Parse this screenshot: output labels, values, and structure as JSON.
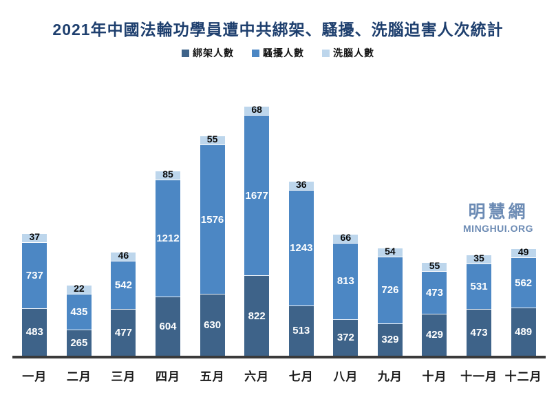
{
  "chart_data": {
    "type": "bar",
    "stacked": true,
    "title": "2021年中國法輪功學員遭中共綁架、騷擾、洗腦迫害人次統計",
    "title_color": "#1E3F6E",
    "categories": [
      "一月",
      "二月",
      "三月",
      "四月",
      "五月",
      "六月",
      "七月",
      "八月",
      "九月",
      "十月",
      "十一月",
      "十二月"
    ],
    "series": [
      {
        "name": "綁架人數",
        "color": "#3E6389",
        "values": [
          483,
          265,
          477,
          604,
          630,
          822,
          513,
          372,
          329,
          429,
          473,
          489
        ]
      },
      {
        "name": "騷擾人數",
        "color": "#4C87C4",
        "values": [
          737,
          435,
          542,
          1212,
          1576,
          1677,
          1243,
          813,
          726,
          473,
          531,
          562
        ]
      },
      {
        "name": "洗腦人數",
        "color": "#BDD6EC",
        "values": [
          37,
          22,
          46,
          85,
          55,
          68,
          36,
          66,
          54,
          55,
          35,
          49
        ]
      }
    ],
    "value_labels": true,
    "legend_position": "top",
    "y_axis_visible": false,
    "grid": false,
    "ylim": [
      0,
      2600
    ],
    "x_axis_line_color": "#3A3A3A"
  },
  "watermark": {
    "line1": "明慧網",
    "line2": "MINGHUI.ORG",
    "color": "#6C8BB4"
  }
}
